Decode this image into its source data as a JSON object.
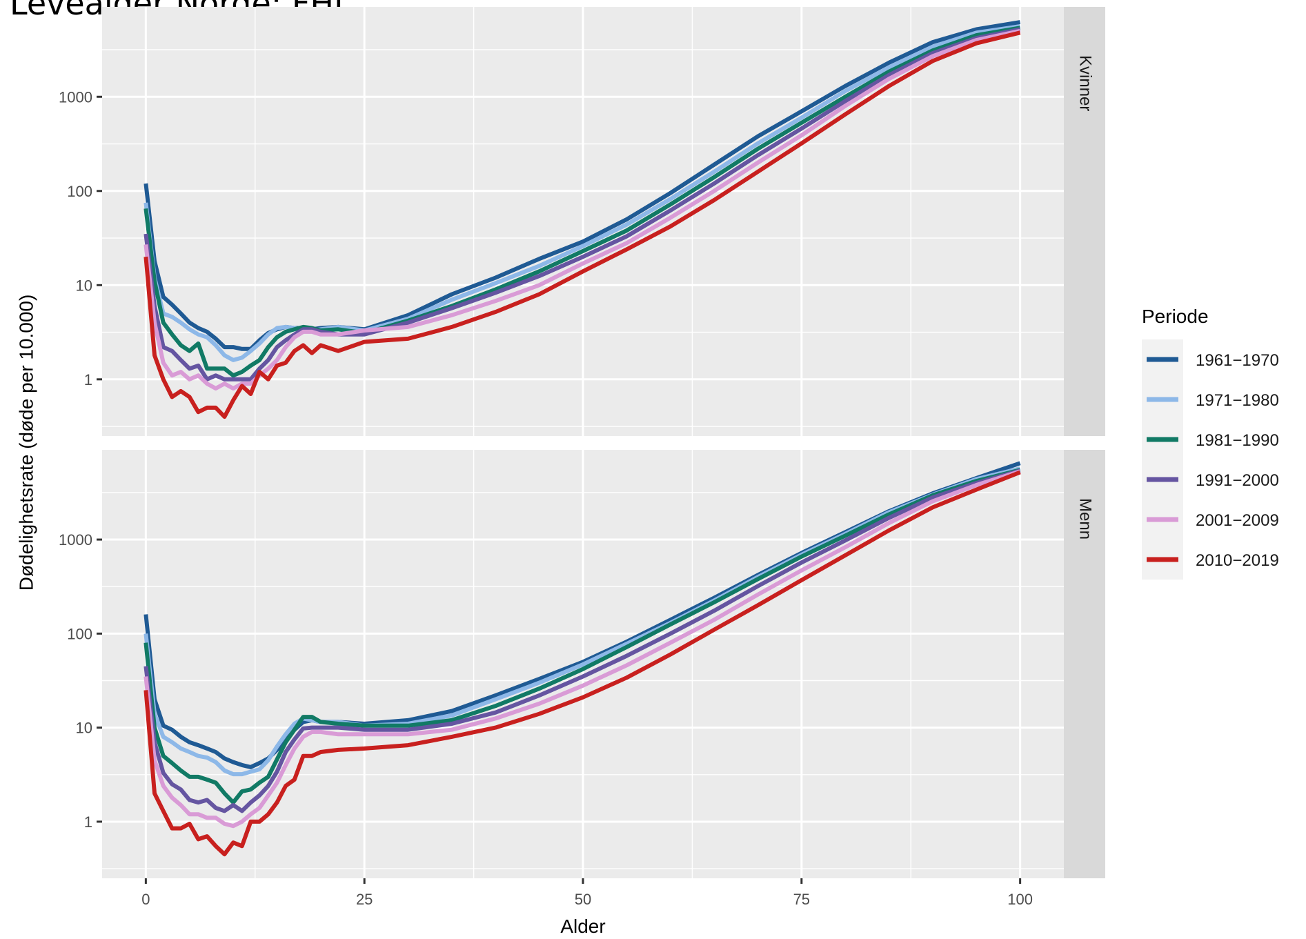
{
  "title": "Levealder Norge; FHI",
  "chart_data": {
    "type": "line",
    "xlabel": "Alder",
    "ylabel": "Dødelighetsrate (døde per 10.000)",
    "xlim": [
      -5,
      105
    ],
    "ylim": [
      0.25,
      9000
    ],
    "yscale": "log10",
    "x_ticks": [
      0,
      25,
      50,
      75,
      100
    ],
    "y_ticks": [
      1,
      10,
      100,
      1000
    ],
    "y_tick_labels": [
      "1",
      "10",
      "100",
      "1000"
    ],
    "grid": true,
    "legend": {
      "title": "Periode",
      "position": "right"
    },
    "x": [
      0,
      1,
      2,
      3,
      4,
      5,
      6,
      7,
      8,
      9,
      10,
      11,
      12,
      13,
      14,
      15,
      16,
      17,
      18,
      19,
      20,
      22,
      25,
      30,
      35,
      40,
      45,
      50,
      55,
      60,
      65,
      70,
      75,
      80,
      85,
      90,
      95,
      100
    ],
    "panels": [
      {
        "strip_label": "Kvinner",
        "series": [
          {
            "name": "1961−1970",
            "color": "#1f5a94",
            "values": [
              120,
              18,
              7.5,
              6.2,
              5,
              4,
              3.5,
              3.2,
              2.7,
              2.2,
              2.2,
              2.1,
              2.1,
              2.6,
              3.1,
              3.4,
              3.6,
              3.5,
              3.5,
              3.4,
              3.5,
              3.6,
              3.4,
              4.8,
              8,
              12,
              19,
              29,
              50,
              95,
              190,
              380,
              700,
              1300,
              2300,
              3800,
              5200,
              6200
            ]
          },
          {
            "name": "1971−1980",
            "color": "#8db8e8",
            "values": [
              75,
              12,
              5,
              4.6,
              4,
              3.4,
              3,
              2.8,
              2.3,
              1.8,
              1.6,
              1.7,
              2,
              2.4,
              3,
              3.5,
              3.6,
              3.5,
              3.4,
              3.3,
              3.4,
              3.6,
              3.3,
              4.4,
              7,
              10.5,
              16,
              26,
              44,
              82,
              160,
              320,
              600,
              1150,
              2050,
              3400,
              4800,
              5600
            ]
          },
          {
            "name": "1981−1990",
            "color": "#117a65",
            "values": [
              65,
              11,
              4,
              3,
              2.3,
              2,
              2.4,
              1.3,
              1.3,
              1.3,
              1.1,
              1.2,
              1.4,
              1.6,
              2.2,
              2.8,
              3.2,
              3.4,
              3.6,
              3.5,
              3.3,
              3.4,
              3.1,
              4.2,
              6,
              9,
              14,
              23,
              38,
              72,
              140,
              280,
              530,
              1000,
              1850,
              3100,
              4500,
              5400
            ]
          },
          {
            "name": "1991−2000",
            "color": "#6555a1",
            "values": [
              35,
              6,
              2.2,
              2,
              1.6,
              1.3,
              1.4,
              1,
              1.1,
              1,
              1,
              1,
              1,
              1.3,
              1.6,
              2.2,
              2.6,
              3,
              3.4,
              3.4,
              3.2,
              3,
              3,
              4,
              5.7,
              8.3,
              12.5,
              20,
              33,
              62,
              120,
              240,
              460,
              900,
              1700,
              2900,
              4200,
              5200
            ]
          },
          {
            "name": "2001−2009",
            "color": "#d99bd6",
            "values": [
              27,
              4,
              1.5,
              1.1,
              1.2,
              1,
              1.1,
              0.9,
              0.8,
              0.9,
              0.8,
              0.9,
              0.9,
              1.1,
              1.3,
              1.6,
              2.2,
              2.8,
              3.2,
              3.2,
              3,
              3,
              3.3,
              3.6,
              4.8,
              6.8,
              10,
              17,
              28,
              52,
              100,
              200,
              390,
              800,
              1550,
              2700,
              4000,
              5000
            ]
          },
          {
            "name": "2010−2019",
            "color": "#c8201e",
            "values": [
              20,
              1.8,
              1,
              0.65,
              0.75,
              0.65,
              0.45,
              0.5,
              0.5,
              0.4,
              0.6,
              0.85,
              0.7,
              1.2,
              1,
              1.4,
              1.5,
              2,
              2.3,
              1.9,
              2.3,
              2,
              2.5,
              2.7,
              3.6,
              5.2,
              8,
              14,
              24,
              42,
              80,
              160,
              320,
              650,
              1300,
              2400,
              3700,
              4800
            ]
          }
        ]
      },
      {
        "strip_label": "Menn",
        "series": [
          {
            "name": "1961−1970",
            "color": "#1f5a94",
            "values": [
              160,
              20,
              10.5,
              9.5,
              8,
              7,
              6.5,
              6,
              5.5,
              4.7,
              4.3,
              4,
              3.8,
              4.2,
              4.7,
              5.8,
              7.5,
              9.5,
              11.5,
              12,
              11.5,
              11.5,
              11,
              12,
              15,
              22,
              33,
              50,
              82,
              140,
              240,
              420,
              720,
              1200,
              2000,
              3100,
              4500,
              6500
            ]
          },
          {
            "name": "1971−1980",
            "color": "#8db8e8",
            "values": [
              100,
              14,
              8,
              7,
              6,
              5.5,
              5,
              4.8,
              4.3,
              3.5,
              3.2,
              3.2,
              3.4,
              3.6,
              4.5,
              6.3,
              8.5,
              11,
              12.5,
              12,
              11.5,
              11.5,
              10.5,
              11,
              13.5,
              20,
              30,
              47,
              78,
              130,
              225,
              400,
              690,
              1150,
              1950,
              3000,
              4400,
              5700
            ]
          },
          {
            "name": "1981−1990",
            "color": "#117a65",
            "values": [
              80,
              10,
              5,
              4.2,
              3.5,
              3,
              3,
              2.8,
              2.6,
              2,
              1.6,
              2.1,
              2.2,
              2.6,
              3,
              4.6,
              7,
              9.5,
              13,
              13,
              11.5,
              11,
              10.5,
              10.5,
              12,
              17,
              26,
              42,
              72,
              125,
              215,
              380,
              660,
              1100,
              1850,
              2950,
              4200,
              5500
            ]
          },
          {
            "name": "1991−2000",
            "color": "#6555a1",
            "values": [
              45,
              7,
              3.3,
              2.5,
              2.2,
              1.7,
              1.6,
              1.7,
              1.4,
              1.3,
              1.5,
              1.3,
              1.6,
              1.9,
              2.4,
              3.4,
              5.5,
              7.5,
              9.8,
              10,
              10,
              10,
              9.5,
              9.5,
              11,
              14.5,
              22,
              35,
              58,
              100,
              175,
              320,
              570,
              980,
              1700,
              2800,
              4000,
              5400
            ]
          },
          {
            "name": "2001−2009",
            "color": "#d99bd6",
            "values": [
              35,
              4.5,
              2.4,
              1.8,
              1.5,
              1.2,
              1.2,
              1.1,
              1.1,
              0.95,
              0.9,
              1,
              1.2,
              1.4,
              1.9,
              2.6,
              4,
              6,
              8,
              9,
              9,
              8.5,
              8.5,
              8.5,
              9.5,
              12.5,
              18,
              28,
              46,
              80,
              140,
              260,
              470,
              830,
              1500,
              2550,
              3800,
              5300
            ]
          },
          {
            "name": "2010−2019",
            "color": "#c8201e",
            "values": [
              25,
              2,
              1.3,
              0.85,
              0.85,
              0.95,
              0.65,
              0.7,
              0.55,
              0.45,
              0.6,
              0.55,
              1,
              1,
              1.2,
              1.6,
              2.4,
              2.8,
              5,
              5,
              5.5,
              5.8,
              6,
              6.5,
              8,
              10,
              14,
              21,
              34,
              60,
              110,
              200,
              370,
              680,
              1250,
              2200,
              3400,
              5200
            ]
          }
        ]
      }
    ]
  }
}
